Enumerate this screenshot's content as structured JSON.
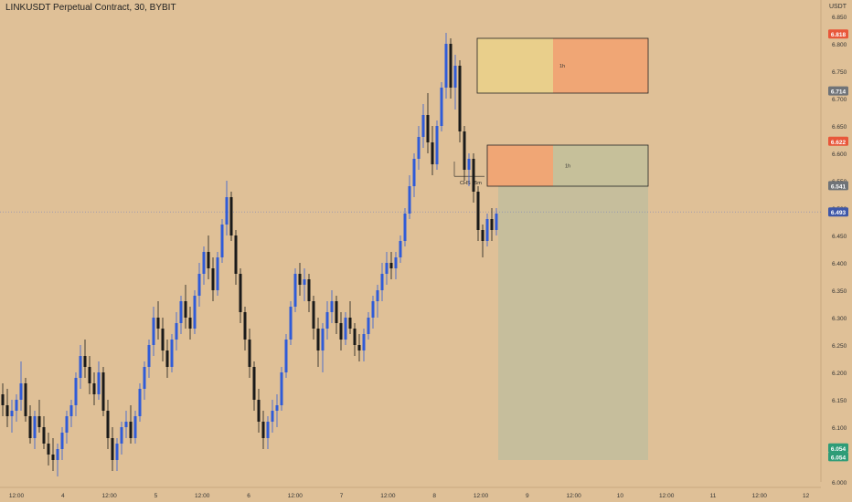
{
  "app": {
    "title": "LINKUSDT Perpetual Contract, 30, BYBIT",
    "unit": "USDT"
  },
  "colors": {
    "background": "#dfc097",
    "up": "#2f5bd8",
    "down": "#1a1a1a",
    "zone_orange": "#f0a675",
    "zone_yellow": "#e9cf8b",
    "zone_olive": "#c6c09a",
    "target_fill": "#c3be9c",
    "last_price_badge": "#3e57a8",
    "red_badge": "#e8573a",
    "gray_badge": "#6f7378"
  },
  "chart_data": {
    "type": "candlestick",
    "title": "LINKUSDT Perpetual Contract, 30, BYBIT",
    "ylabel": "USDT",
    "ylim": [
      6.0,
      6.85
    ],
    "y_ticks": [
      "6.850",
      "6.800",
      "6.750",
      "6.700",
      "6.650",
      "6.600",
      "6.550",
      "6.500",
      "6.450",
      "6.400",
      "6.350",
      "6.300",
      "6.250",
      "6.200",
      "6.150",
      "6.100",
      "6.050",
      "6.000"
    ],
    "x_ticks": [
      "12:00",
      "4",
      "12:00",
      "5",
      "12:00",
      "6",
      "12:00",
      "7",
      "12:00",
      "8",
      "12:00",
      "9",
      "12:00",
      "10",
      "12:00",
      "11",
      "12:00",
      "12"
    ],
    "last_price": 6.493,
    "price_badges": [
      {
        "label": "6.818",
        "value": 6.818,
        "kind": "red"
      },
      {
        "label": "6.714",
        "value": 6.714,
        "kind": "gray"
      },
      {
        "label": "6.622",
        "value": 6.622,
        "kind": "red"
      },
      {
        "label": "6.541",
        "value": 6.541,
        "kind": "gray"
      },
      {
        "label": "6.493",
        "value": 6.493,
        "kind": "last"
      },
      {
        "label": "6.054",
        "value": 6.062,
        "kind": "green"
      },
      {
        "label": "6.054",
        "value": 6.046,
        "kind": "green"
      }
    ],
    "zones": [
      {
        "label": "1h",
        "top": 6.81,
        "bottom": 6.71
      },
      {
        "label": "1h",
        "top": 6.615,
        "bottom": 6.54
      }
    ],
    "target_zone": {
      "top": 6.54,
      "bottom": 6.04
    },
    "annotations": [
      {
        "text": "CHS 15m",
        "price": 6.558
      }
    ],
    "candles": [
      [
        6.16,
        6.18,
        6.12,
        6.14
      ],
      [
        6.14,
        6.17,
        6.1,
        6.12
      ],
      [
        6.12,
        6.15,
        6.09,
        6.13
      ],
      [
        6.13,
        6.16,
        6.11,
        6.15
      ],
      [
        6.15,
        6.22,
        6.13,
        6.18
      ],
      [
        6.18,
        6.19,
        6.11,
        6.12
      ],
      [
        6.12,
        6.14,
        6.07,
        6.08
      ],
      [
        6.08,
        6.13,
        6.06,
        6.12
      ],
      [
        6.12,
        6.15,
        6.09,
        6.1
      ],
      [
        6.1,
        6.12,
        6.06,
        6.07
      ],
      [
        6.07,
        6.09,
        6.03,
        6.05
      ],
      [
        6.05,
        6.08,
        6.02,
        6.04
      ],
      [
        6.04,
        6.07,
        6.01,
        6.06
      ],
      [
        6.06,
        6.1,
        6.04,
        6.09
      ],
      [
        6.09,
        6.13,
        6.07,
        6.12
      ],
      [
        6.12,
        6.15,
        6.1,
        6.14
      ],
      [
        6.14,
        6.2,
        6.12,
        6.19
      ],
      [
        6.19,
        6.25,
        6.17,
        6.23
      ],
      [
        6.23,
        6.26,
        6.19,
        6.21
      ],
      [
        6.21,
        6.23,
        6.16,
        6.18
      ],
      [
        6.18,
        6.2,
        6.14,
        6.16
      ],
      [
        6.16,
        6.22,
        6.15,
        6.2
      ],
      [
        6.2,
        6.21,
        6.12,
        6.13
      ],
      [
        6.13,
        6.15,
        6.06,
        6.08
      ],
      [
        6.08,
        6.1,
        6.02,
        6.04
      ],
      [
        6.04,
        6.08,
        6.02,
        6.07
      ],
      [
        6.07,
        6.11,
        6.05,
        6.1
      ],
      [
        6.1,
        6.13,
        6.08,
        6.11
      ],
      [
        6.11,
        6.14,
        6.07,
        6.08
      ],
      [
        6.08,
        6.13,
        6.07,
        6.12
      ],
      [
        6.12,
        6.18,
        6.11,
        6.17
      ],
      [
        6.17,
        6.22,
        6.15,
        6.21
      ],
      [
        6.21,
        6.26,
        6.19,
        6.25
      ],
      [
        6.25,
        6.32,
        6.23,
        6.3
      ],
      [
        6.3,
        6.33,
        6.26,
        6.28
      ],
      [
        6.28,
        6.3,
        6.22,
        6.24
      ],
      [
        6.24,
        6.26,
        6.19,
        6.21
      ],
      [
        6.21,
        6.27,
        6.2,
        6.26
      ],
      [
        6.26,
        6.31,
        6.24,
        6.29
      ],
      [
        6.29,
        6.34,
        6.27,
        6.33
      ],
      [
        6.33,
        6.36,
        6.28,
        6.3
      ],
      [
        6.3,
        6.32,
        6.26,
        6.28
      ],
      [
        6.28,
        6.35,
        6.27,
        6.34
      ],
      [
        6.34,
        6.4,
        6.32,
        6.38
      ],
      [
        6.38,
        6.43,
        6.36,
        6.42
      ],
      [
        6.42,
        6.45,
        6.37,
        6.39
      ],
      [
        6.39,
        6.41,
        6.33,
        6.35
      ],
      [
        6.35,
        6.42,
        6.34,
        6.41
      ],
      [
        6.41,
        6.48,
        6.4,
        6.47
      ],
      [
        6.47,
        6.55,
        6.45,
        6.52
      ],
      [
        6.52,
        6.53,
        6.44,
        6.45
      ],
      [
        6.45,
        6.46,
        6.36,
        6.38
      ],
      [
        6.38,
        6.39,
        6.29,
        6.31
      ],
      [
        6.31,
        6.32,
        6.24,
        6.26
      ],
      [
        6.26,
        6.28,
        6.19,
        6.21
      ],
      [
        6.21,
        6.22,
        6.13,
        6.15
      ],
      [
        6.15,
        6.17,
        6.09,
        6.11
      ],
      [
        6.11,
        6.13,
        6.06,
        6.08
      ],
      [
        6.08,
        6.12,
        6.06,
        6.11
      ],
      [
        6.11,
        6.15,
        6.09,
        6.13
      ],
      [
        6.13,
        6.16,
        6.1,
        6.14
      ],
      [
        6.14,
        6.21,
        6.13,
        6.2
      ],
      [
        6.2,
        6.27,
        6.19,
        6.26
      ],
      [
        6.26,
        6.33,
        6.25,
        6.32
      ],
      [
        6.32,
        6.39,
        6.31,
        6.38
      ],
      [
        6.38,
        6.4,
        6.34,
        6.36
      ],
      [
        6.36,
        6.39,
        6.33,
        6.37
      ],
      [
        6.37,
        6.38,
        6.31,
        6.33
      ],
      [
        6.33,
        6.34,
        6.26,
        6.28
      ],
      [
        6.28,
        6.3,
        6.21,
        6.24
      ],
      [
        6.24,
        6.29,
        6.2,
        6.28
      ],
      [
        6.28,
        6.33,
        6.26,
        6.31
      ],
      [
        6.31,
        6.35,
        6.29,
        6.33
      ],
      [
        6.33,
        6.34,
        6.27,
        6.29
      ],
      [
        6.29,
        6.31,
        6.24,
        6.26
      ],
      [
        6.26,
        6.31,
        6.25,
        6.3
      ],
      [
        6.3,
        6.33,
        6.27,
        6.28
      ],
      [
        6.28,
        6.29,
        6.23,
        6.25
      ],
      [
        6.25,
        6.27,
        6.22,
        6.24
      ],
      [
        6.24,
        6.28,
        6.22,
        6.27
      ],
      [
        6.27,
        6.31,
        6.26,
        6.3
      ],
      [
        6.3,
        6.34,
        6.28,
        6.33
      ],
      [
        6.33,
        6.36,
        6.3,
        6.35
      ],
      [
        6.35,
        6.4,
        6.33,
        6.38
      ],
      [
        6.38,
        6.42,
        6.36,
        6.4
      ],
      [
        6.4,
        6.42,
        6.37,
        6.39
      ],
      [
        6.39,
        6.42,
        6.37,
        6.41
      ],
      [
        6.41,
        6.45,
        6.4,
        6.44
      ],
      [
        6.44,
        6.5,
        6.43,
        6.49
      ],
      [
        6.49,
        6.56,
        6.48,
        6.54
      ],
      [
        6.54,
        6.6,
        6.52,
        6.59
      ],
      [
        6.59,
        6.65,
        6.57,
        6.63
      ],
      [
        6.63,
        6.69,
        6.61,
        6.67
      ],
      [
        6.67,
        6.71,
        6.6,
        6.62
      ],
      [
        6.62,
        6.65,
        6.56,
        6.58
      ],
      [
        6.58,
        6.66,
        6.57,
        6.65
      ],
      [
        6.65,
        6.73,
        6.64,
        6.72
      ],
      [
        6.72,
        6.82,
        6.7,
        6.8
      ],
      [
        6.8,
        6.81,
        6.7,
        6.72
      ],
      [
        6.72,
        6.78,
        6.68,
        6.76
      ],
      [
        6.76,
        6.77,
        6.62,
        6.64
      ],
      [
        6.64,
        6.65,
        6.55,
        6.57
      ],
      [
        6.57,
        6.6,
        6.54,
        6.59
      ],
      [
        6.59,
        6.6,
        6.51,
        6.53
      ],
      [
        6.53,
        6.54,
        6.44,
        6.46
      ],
      [
        6.46,
        6.47,
        6.41,
        6.44
      ],
      [
        6.44,
        6.49,
        6.43,
        6.48
      ],
      [
        6.48,
        6.5,
        6.44,
        6.46
      ],
      [
        6.46,
        6.5,
        6.45,
        6.49
      ]
    ]
  }
}
